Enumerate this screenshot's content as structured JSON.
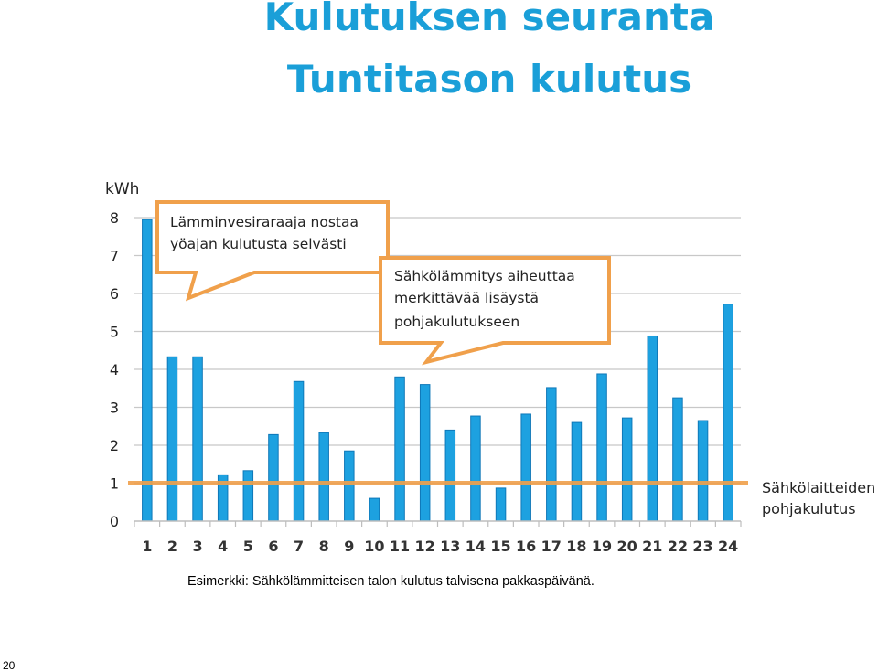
{
  "slide": {
    "title_line1": "Kulutuksen seuranta",
    "title_line2": "Tuntitason kulutus",
    "caption": "Esimerkki: Sähkölämmitteisen talon kulutus talvisena pakkaspäivänä.",
    "page_number": "20"
  },
  "colors": {
    "title": "#1a9fd8",
    "bar": "#1da1e0",
    "bar_edge": "#0f78b8",
    "baseline": "#f0a04b",
    "callout_border": "#f0a04b",
    "grid": "#c8c8c8"
  },
  "chart_data": {
    "type": "bar",
    "ylabel": "kWh",
    "ylim": [
      0,
      8
    ],
    "yticks": [
      0,
      1,
      2,
      3,
      4,
      5,
      6,
      7,
      8
    ],
    "grid": true,
    "categories": [
      "1",
      "2",
      "3",
      "4",
      "5",
      "6",
      "7",
      "8",
      "9",
      "10",
      "11",
      "12",
      "13",
      "14",
      "15",
      "16",
      "17",
      "18",
      "19",
      "20",
      "21",
      "22",
      "23",
      "24"
    ],
    "values": [
      7.95,
      4.33,
      4.33,
      1.22,
      1.33,
      2.28,
      3.68,
      2.33,
      1.85,
      0.6,
      3.8,
      3.6,
      2.4,
      2.77,
      0.87,
      2.82,
      3.52,
      2.6,
      3.88,
      2.72,
      4.88,
      3.25,
      2.65,
      5.72
    ],
    "reference_line": {
      "value": 1.0,
      "label_line1": "Sähkölaitteiden",
      "label_line2": "pohjakulutus"
    },
    "annotations": [
      {
        "line1": "Lämminvesiraraaja nostaa",
        "line2": "yöajan kulutusta selvästi"
      },
      {
        "line1": "Sähkölämmitys aiheuttaa",
        "line2": "merkittävää lisäystä",
        "line3": "pohjakulutukseen"
      }
    ]
  }
}
